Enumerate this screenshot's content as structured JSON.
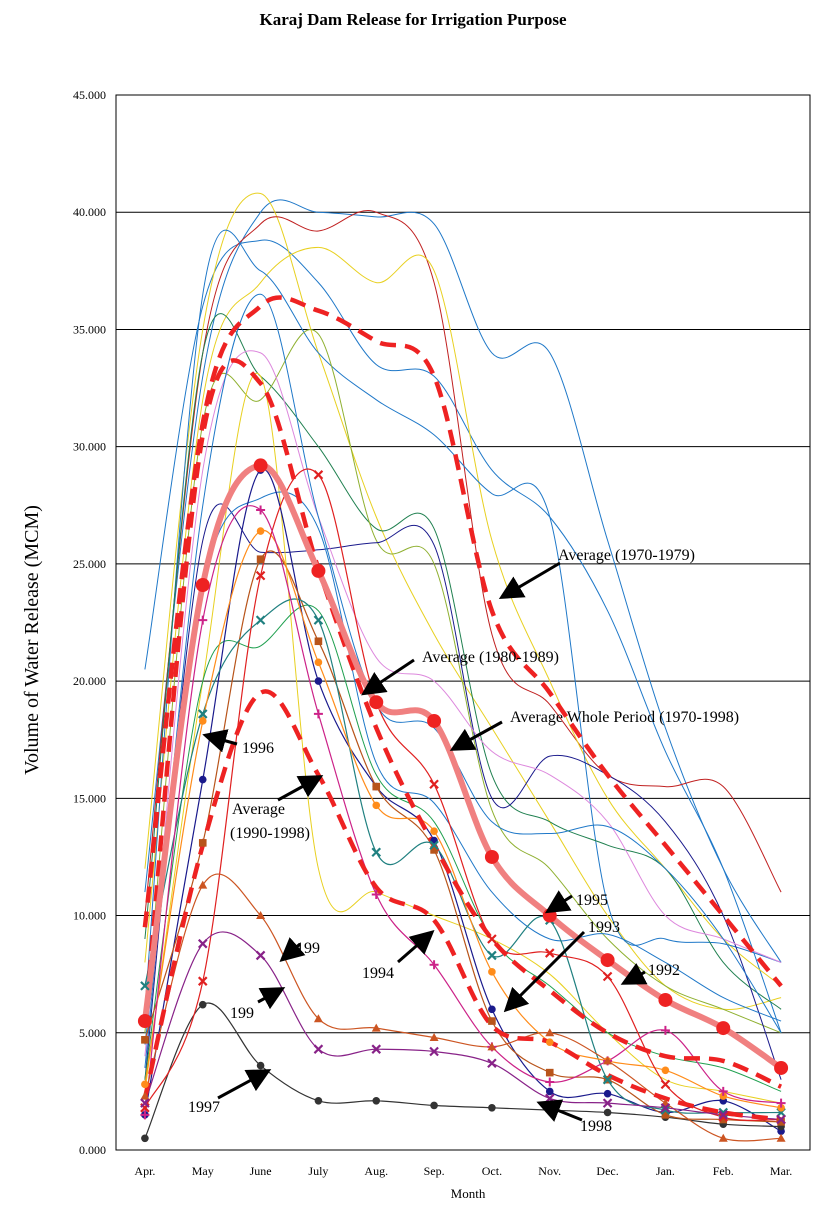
{
  "chart_data": {
    "type": "line",
    "title": "Karaj Dam Release for Irrigation Purpose",
    "xlabel": "Month",
    "ylabel": "Volume of Water Release (MCM)",
    "categories": [
      "Apr.",
      "May",
      "June",
      "July",
      "Aug.",
      "Sep.",
      "Oct.",
      "Nov.",
      "Dec.",
      "Jan.",
      "Feb.",
      "Mar."
    ],
    "ylim": [
      0,
      45
    ],
    "yticks": [
      "0.000",
      "5.000",
      "10.000",
      "15.000",
      "20.000",
      "25.000",
      "30.000",
      "35.000",
      "40.000",
      "45.000"
    ],
    "grid": true,
    "legend": "none",
    "series": [
      {
        "name": "Average (1970-1979)",
        "color": "#ee2222",
        "style": "dashed-thick",
        "values": [
          9.5,
          31.0,
          36.0,
          35.8,
          34.5,
          33.0,
          23.0,
          19.5,
          16.0,
          13.0,
          10.0,
          7.0
        ]
      },
      {
        "name": "Average (1980-1989)",
        "color": "#ee2222",
        "style": "dashed-thick",
        "values": [
          5.3,
          30.5,
          32.7,
          24.8,
          18.0,
          13.0,
          9.0,
          6.8,
          5.0,
          4.0,
          3.8,
          2.7
        ]
      },
      {
        "name": "Average (1990-1998)",
        "color": "#ee2222",
        "style": "dashed-thick",
        "values": [
          2.2,
          13.0,
          19.5,
          16.0,
          11.2,
          9.8,
          5.3,
          4.6,
          3.2,
          2.2,
          1.6,
          1.3
        ]
      },
      {
        "name": "Average Whole Period (1970-1998)",
        "color": "#f08080",
        "style": "thick-dots",
        "values": [
          5.5,
          24.1,
          29.2,
          24.7,
          19.1,
          18.3,
          12.5,
          10.0,
          8.1,
          6.4,
          5.2,
          3.5
        ]
      },
      {
        "name": "1996",
        "color": "#1a1a8c",
        "marker": "circle",
        "values": [
          1.5,
          15.8,
          29.0,
          20.0,
          15.5,
          13.2,
          6.0,
          2.5,
          2.4,
          1.6,
          2.1,
          0.8
        ]
      },
      {
        "name": "1997",
        "color": "#333333",
        "marker": "circle",
        "values": [
          0.5,
          6.2,
          3.6,
          2.1,
          2.1,
          1.9,
          1.8,
          1.7,
          1.6,
          1.4,
          1.1,
          1.0
        ]
      },
      {
        "name": "1998",
        "color": "#b8541a",
        "marker": "square",
        "values": [
          4.7,
          13.1,
          25.2,
          21.7,
          15.5,
          12.8,
          5.5,
          3.3,
          3.0,
          1.5,
          1.3,
          1.2
        ]
      },
      {
        "name": "1995",
        "color": "#208080",
        "marker": "x",
        "values": [
          7.0,
          18.6,
          22.6,
          22.6,
          12.7,
          13.0,
          8.3,
          9.8,
          3.0,
          1.7,
          1.6,
          1.6
        ]
      },
      {
        "name": "1993",
        "color": "#ff8c1a",
        "marker": "circle",
        "values": [
          2.8,
          18.3,
          26.4,
          20.8,
          14.7,
          13.6,
          7.6,
          4.6,
          3.8,
          3.4,
          2.3,
          1.8
        ]
      },
      {
        "name": "1992",
        "color": "#e02020",
        "marker": "x",
        "values": [
          1.8,
          7.2,
          24.5,
          28.8,
          19.1,
          15.6,
          9.0,
          8.4,
          7.4,
          2.8,
          1.4,
          1.3
        ]
      },
      {
        "name": "1994",
        "color": "#cc2288",
        "marker": "plus",
        "values": [
          1.5,
          22.6,
          27.3,
          18.6,
          10.9,
          7.9,
          4.4,
          2.9,
          3.8,
          5.1,
          2.5,
          2.0
        ]
      },
      {
        "name": "1991",
        "color": "#cc5522",
        "marker": "triangle",
        "values": [
          2.3,
          11.3,
          10.0,
          5.6,
          5.2,
          4.8,
          4.4,
          5.0,
          3.8,
          2.0,
          0.5,
          0.5
        ]
      },
      {
        "name": "1990",
        "color": "#882288",
        "marker": "x",
        "values": [
          2.0,
          8.8,
          8.3,
          4.3,
          4.3,
          4.2,
          3.7,
          2.2,
          2.0,
          1.8,
          1.5,
          1.3
        ]
      },
      {
        "name": "",
        "color": "#1f78c8",
        "values": [
          20.5,
          36.0,
          38.8,
          37.0,
          33.5,
          33.0,
          29.0,
          27.0,
          23.0,
          17.0,
          12.0,
          5.0
        ]
      },
      {
        "name": "",
        "color": "#1f78c8",
        "values": [
          11.0,
          33.0,
          40.0,
          40.0,
          39.8,
          39.5,
          34.0,
          34.0,
          26.0,
          18.0,
          12.0,
          8.0
        ]
      },
      {
        "name": "",
        "color": "#e8d020",
        "values": [
          12.0,
          35.0,
          40.8,
          34.0,
          27.0,
          22.0,
          18.0,
          14.0,
          10.0,
          7.0,
          6.0,
          6.5
        ]
      },
      {
        "name": "",
        "color": "#c02020",
        "values": [
          10.0,
          34.0,
          39.5,
          39.2,
          40.0,
          37.0,
          22.0,
          19.0,
          16.0,
          15.5,
          15.5,
          11.0
        ]
      },
      {
        "name": "",
        "color": "#e8d020",
        "values": [
          8.0,
          32.0,
          37.0,
          38.5,
          37.0,
          37.5,
          26.0,
          20.0,
          15.0,
          12.0,
          9.0,
          7.0
        ]
      },
      {
        "name": "",
        "color": "#1f78c8",
        "values": [
          6.0,
          36.5,
          37.5,
          34.0,
          32.0,
          30.5,
          28.0,
          27.0,
          10.5,
          9.0,
          8.8,
          8.0
        ]
      },
      {
        "name": "",
        "color": "#208050",
        "values": [
          9.0,
          34.0,
          33.0,
          30.0,
          26.5,
          26.5,
          16.0,
          14.0,
          13.0,
          12.0,
          8.0,
          6.0
        ]
      },
      {
        "name": "",
        "color": "#8fb030",
        "values": [
          5.0,
          31.0,
          32.0,
          34.8,
          26.0,
          25.0,
          14.5,
          12.0,
          9.0,
          7.0,
          6.0,
          5.0
        ]
      },
      {
        "name": "",
        "color": "#1a1a8c",
        "values": [
          3.0,
          26.0,
          25.5,
          25.6,
          25.9,
          25.8,
          15.0,
          16.8,
          16.0,
          14.0,
          10.0,
          3.0
        ]
      },
      {
        "name": "",
        "color": "#dd88dd",
        "values": [
          4.0,
          29.0,
          34.0,
          27.0,
          21.0,
          20.0,
          17.0,
          16.0,
          14.0,
          10.0,
          9.0,
          8.0
        ]
      },
      {
        "name": "",
        "color": "#1f78c8",
        "values": [
          3.5,
          27.5,
          36.5,
          27.0,
          19.0,
          18.0,
          14.0,
          13.5,
          13.8,
          12.0,
          9.0,
          5.0
        ]
      },
      {
        "name": "",
        "color": "#e8d020",
        "values": [
          2.5,
          20.0,
          33.0,
          12.0,
          11.0,
          10.0,
          9.0,
          7.5,
          5.0,
          3.0,
          2.5,
          2.0
        ]
      },
      {
        "name": "",
        "color": "#20a050",
        "values": [
          3.0,
          20.0,
          21.5,
          23.0,
          16.0,
          14.0,
          9.0,
          7.0,
          5.0,
          4.0,
          3.5,
          2.5
        ]
      },
      {
        "name": "",
        "color": "#1f78c8",
        "values": [
          4.5,
          24.0,
          27.8,
          26.5,
          16.5,
          14.8,
          11.0,
          9.0,
          9.2,
          8.0,
          6.5,
          5.5
        ]
      }
    ],
    "annotations": [
      {
        "text": "Average (1970-1979)"
      },
      {
        "text": "Average (1980-1989)"
      },
      {
        "text": "Average Whole Period (1970-1998)"
      },
      {
        "text": "1996"
      },
      {
        "text": "Average"
      },
      {
        "text": "(1990-1998)"
      },
      {
        "text": "1995"
      },
      {
        "text": "1993"
      },
      {
        "text": "1992"
      },
      {
        "text": "1994"
      },
      {
        "text": "199"
      },
      {
        "text": "199"
      },
      {
        "text": "1997"
      },
      {
        "text": "1998"
      }
    ]
  }
}
